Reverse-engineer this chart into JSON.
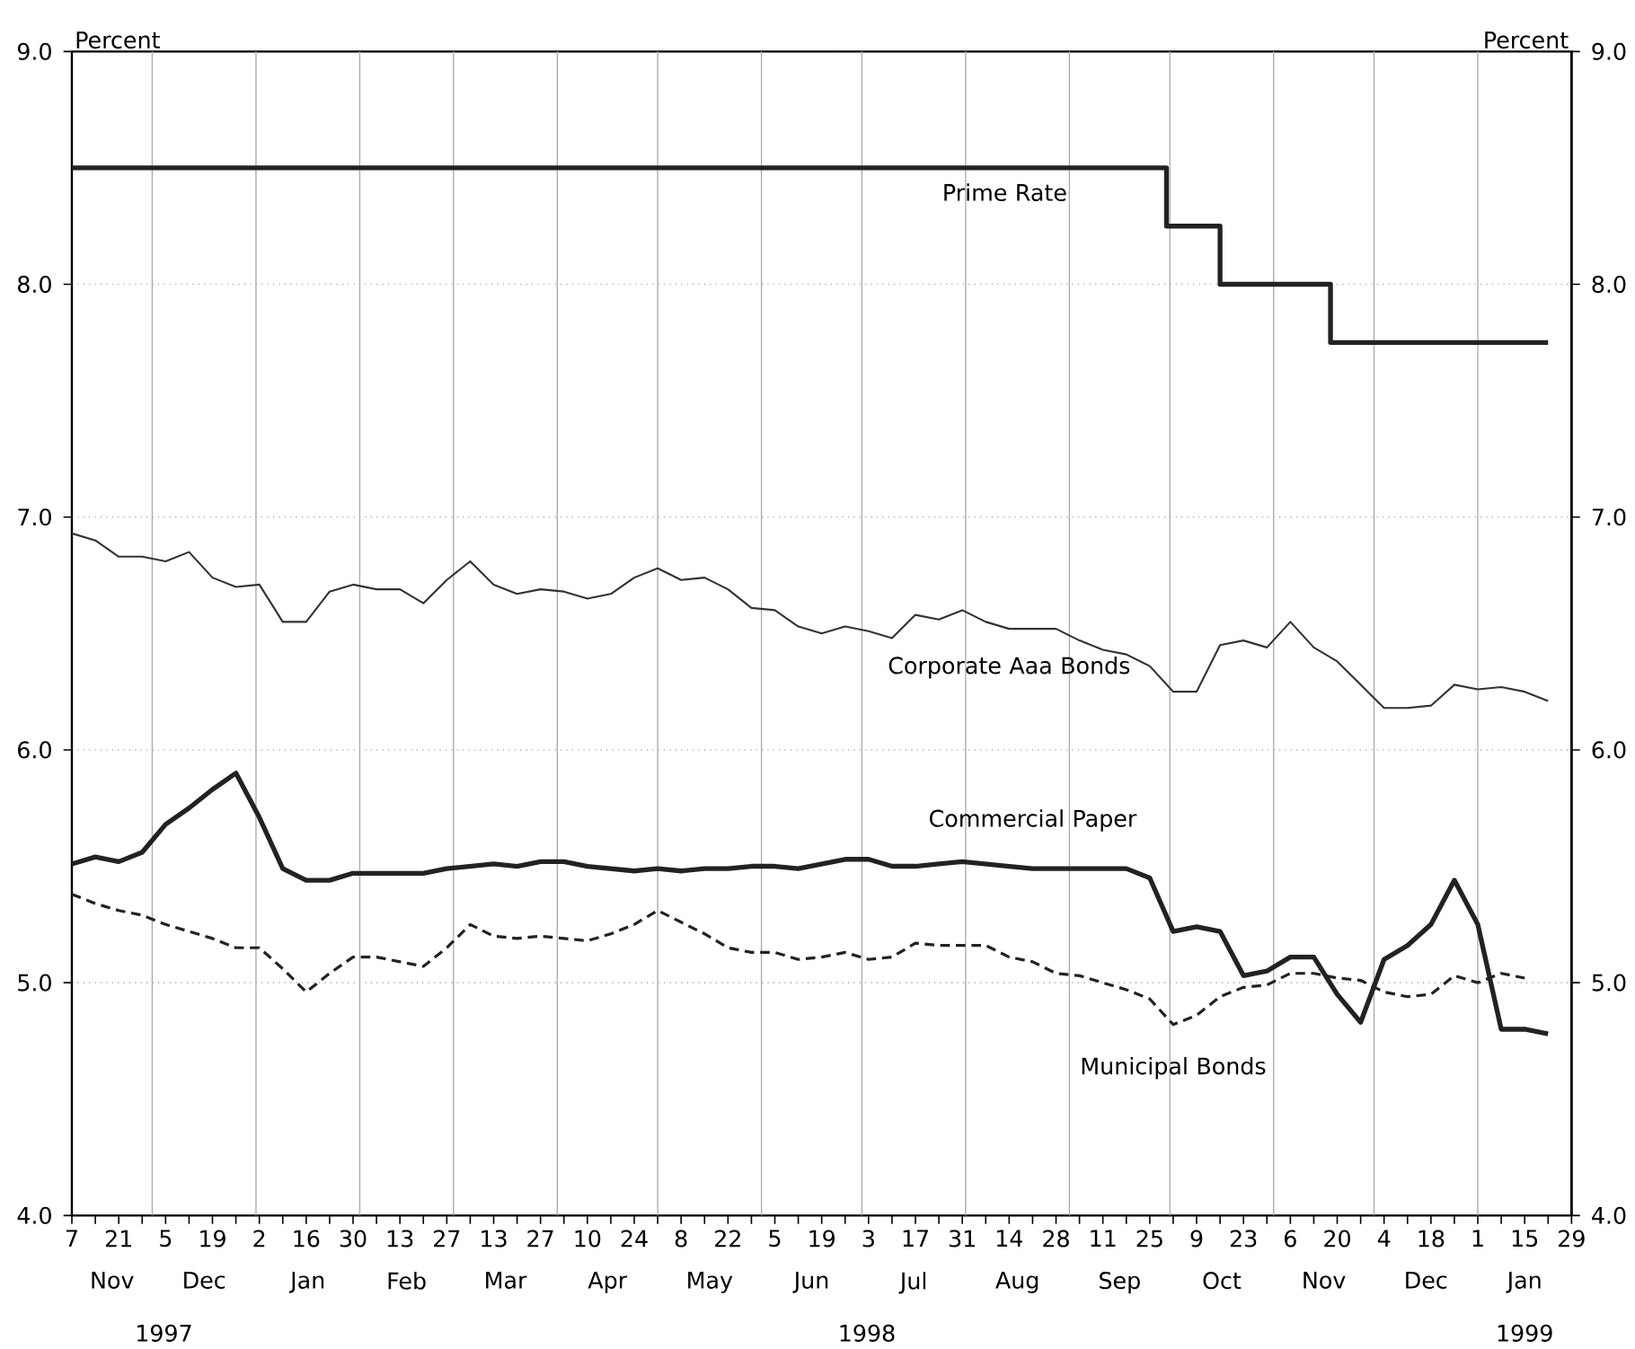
{
  "chart_data": {
    "type": "line",
    "ylabel": "Percent",
    "y2label": "Percent",
    "xlim": [
      "1997-11-07",
      "1999-01-29"
    ],
    "ylim": [
      4,
      9
    ],
    "y2lim": [
      4,
      9
    ],
    "yticks": [
      {
        "value": 4,
        "label": "4.0"
      },
      {
        "value": 5,
        "label": "5.0"
      },
      {
        "value": 6,
        "label": "6.0"
      },
      {
        "value": 7,
        "label": "7.0"
      },
      {
        "value": 8,
        "label": "8.0"
      },
      {
        "value": 9,
        "label": "9.0"
      }
    ],
    "y2ticks": [
      {
        "value": 4,
        "label": "4.0"
      },
      {
        "value": 5,
        "label": "5.0"
      },
      {
        "value": 6,
        "label": "6.0"
      },
      {
        "value": 7,
        "label": "7.0"
      },
      {
        "value": 8,
        "label": "8.0"
      },
      {
        "value": 9,
        "label": "9.0"
      }
    ],
    "xticks": [
      {
        "value": "1997-11-07",
        "label": "7"
      },
      {
        "value": "1997-11-14",
        "label": null
      },
      {
        "value": "1997-11-21",
        "label": "21"
      },
      {
        "value": "1997-11-28",
        "label": null
      },
      {
        "value": "1997-12-05",
        "label": "5"
      },
      {
        "value": "1997-12-12",
        "label": null
      },
      {
        "value": "1997-12-19",
        "label": "19"
      },
      {
        "value": "1997-12-26",
        "label": null
      },
      {
        "value": "1998-01-02",
        "label": "2"
      },
      {
        "value": "1998-01-09",
        "label": null
      },
      {
        "value": "1998-01-16",
        "label": "16"
      },
      {
        "value": "1998-01-23",
        "label": null
      },
      {
        "value": "1998-01-30",
        "label": "30"
      },
      {
        "value": "1998-02-06",
        "label": null
      },
      {
        "value": "1998-02-13",
        "label": "13"
      },
      {
        "value": "1998-02-20",
        "label": null
      },
      {
        "value": "1998-02-27",
        "label": "27"
      },
      {
        "value": "1998-03-06",
        "label": null
      },
      {
        "value": "1998-03-13",
        "label": "13"
      },
      {
        "value": "1998-03-20",
        "label": null
      },
      {
        "value": "1998-03-27",
        "label": "27"
      },
      {
        "value": "1998-04-03",
        "label": null
      },
      {
        "value": "1998-04-10",
        "label": "10"
      },
      {
        "value": "1998-04-17",
        "label": null
      },
      {
        "value": "1998-04-24",
        "label": "24"
      },
      {
        "value": "1998-05-01",
        "label": null
      },
      {
        "value": "1998-05-08",
        "label": "8"
      },
      {
        "value": "1998-05-15",
        "label": null
      },
      {
        "value": "1998-05-22",
        "label": "22"
      },
      {
        "value": "1998-05-29",
        "label": null
      },
      {
        "value": "1998-06-05",
        "label": "5"
      },
      {
        "value": "1998-06-12",
        "label": null
      },
      {
        "value": "1998-06-19",
        "label": "19"
      },
      {
        "value": "1998-06-26",
        "label": null
      },
      {
        "value": "1998-07-03",
        "label": "3"
      },
      {
        "value": "1998-07-10",
        "label": null
      },
      {
        "value": "1998-07-17",
        "label": "17"
      },
      {
        "value": "1998-07-24",
        "label": null
      },
      {
        "value": "1998-07-31",
        "label": "31"
      },
      {
        "value": "1998-08-07",
        "label": null
      },
      {
        "value": "1998-08-14",
        "label": "14"
      },
      {
        "value": "1998-08-21",
        "label": null
      },
      {
        "value": "1998-08-28",
        "label": "28"
      },
      {
        "value": "1998-09-04",
        "label": null
      },
      {
        "value": "1998-09-11",
        "label": "11"
      },
      {
        "value": "1998-09-18",
        "label": null
      },
      {
        "value": "1998-09-25",
        "label": "25"
      },
      {
        "value": "1998-10-02",
        "label": null
      },
      {
        "value": "1998-10-09",
        "label": "9"
      },
      {
        "value": "1998-10-16",
        "label": null
      },
      {
        "value": "1998-10-23",
        "label": "23"
      },
      {
        "value": "1998-10-30",
        "label": null
      },
      {
        "value": "1998-11-06",
        "label": "6"
      },
      {
        "value": "1998-11-13",
        "label": null
      },
      {
        "value": "1998-11-20",
        "label": "20"
      },
      {
        "value": "1998-11-27",
        "label": null
      },
      {
        "value": "1998-12-04",
        "label": "4"
      },
      {
        "value": "1998-12-11",
        "label": null
      },
      {
        "value": "1998-12-18",
        "label": "18"
      },
      {
        "value": "1998-12-25",
        "label": null
      },
      {
        "value": "1999-01-01",
        "label": "1"
      },
      {
        "value": "1999-01-08",
        "label": null
      },
      {
        "value": "1999-01-15",
        "label": "15"
      },
      {
        "value": "1999-01-22",
        "label": null
      },
      {
        "value": "1999-01-29",
        "label": "29"
      }
    ],
    "grid": "y",
    "x": [
      "1997-11-07",
      "1997-11-14",
      "1997-11-21",
      "1997-11-28",
      "1997-12-05",
      "1997-12-12",
      "1997-12-19",
      "1997-12-26",
      "1998-01-02",
      "1998-01-09",
      "1998-01-16",
      "1998-01-23",
      "1998-01-30",
      "1998-02-06",
      "1998-02-13",
      "1998-02-20",
      "1998-02-27",
      "1998-03-06",
      "1998-03-13",
      "1998-03-20",
      "1998-03-27",
      "1998-04-03",
      "1998-04-10",
      "1998-04-17",
      "1998-04-24",
      "1998-05-01",
      "1998-05-08",
      "1998-05-15",
      "1998-05-22",
      "1998-05-29",
      "1998-06-05",
      "1998-06-12",
      "1998-06-19",
      "1998-06-26",
      "1998-07-03",
      "1998-07-10",
      "1998-07-17",
      "1998-07-24",
      "1998-07-31",
      "1998-08-07",
      "1998-08-14",
      "1998-08-21",
      "1998-08-28",
      "1998-09-04",
      "1998-09-11",
      "1998-09-18",
      "1998-09-25",
      "1998-10-02",
      "1998-10-09",
      "1998-10-16",
      "1998-10-23",
      "1998-10-30",
      "1998-11-06",
      "1998-11-13",
      "1998-11-20",
      "1998-11-27",
      "1998-12-04",
      "1998-12-11",
      "1998-12-18",
      "1998-12-25",
      "1999-01-01",
      "1999-01-08",
      "1999-01-15",
      "1999-01-22"
    ],
    "series": [
      {
        "name": "Prime Rate",
        "type": "step",
        "color": "#222222",
        "x": [
          "1997-11-07",
          "1998-09-30",
          "1998-10-16",
          "1998-11-18",
          "1999-01-22"
        ],
        "values": [
          8.5,
          8.25,
          8.0,
          7.75,
          7.75
        ]
      },
      {
        "name": "Corporate Aaa Bonds",
        "color": "#333333",
        "values": [
          6.93,
          6.9,
          6.83,
          6.83,
          6.81,
          6.85,
          6.74,
          6.7,
          6.71,
          6.55,
          6.55,
          6.68,
          6.71,
          6.69,
          6.69,
          6.63,
          6.73,
          6.81,
          6.71,
          6.67,
          6.69,
          6.68,
          6.65,
          6.67,
          6.74,
          6.78,
          6.73,
          6.74,
          6.69,
          6.61,
          6.6,
          6.53,
          6.5,
          6.53,
          6.51,
          6.48,
          6.58,
          6.56,
          6.6,
          6.55,
          6.52,
          6.52,
          6.52,
          6.47,
          6.43,
          6.41,
          6.36,
          6.25,
          6.25,
          6.45,
          6.47,
          6.44,
          6.55,
          6.44,
          6.38,
          6.28,
          6.18,
          6.18,
          6.19,
          6.28,
          6.26,
          6.27,
          6.25,
          6.21
        ]
      },
      {
        "name": "Commercial Paper",
        "color": "#222222",
        "values": [
          5.51,
          5.54,
          5.52,
          5.56,
          5.68,
          5.75,
          5.83,
          5.9,
          5.71,
          5.49,
          5.44,
          5.44,
          5.47,
          5.47,
          5.47,
          5.47,
          5.49,
          5.5,
          5.51,
          5.5,
          5.52,
          5.52,
          5.5,
          5.49,
          5.48,
          5.49,
          5.48,
          5.49,
          5.49,
          5.5,
          5.5,
          5.49,
          5.51,
          5.53,
          5.53,
          5.5,
          5.5,
          5.51,
          5.52,
          5.51,
          5.5,
          5.49,
          5.49,
          5.49,
          5.49,
          5.49,
          5.45,
          5.22,
          5.24,
          5.22,
          5.03,
          5.05,
          5.11,
          5.11,
          4.95,
          4.83,
          5.1,
          5.16,
          5.25,
          5.44,
          5.25,
          4.8,
          4.8,
          4.78
        ]
      },
      {
        "name": "Municipal Bonds",
        "color": "#222222",
        "line_style": "dashed",
        "values": [
          5.38,
          5.34,
          5.31,
          5.29,
          5.25,
          5.22,
          5.19,
          5.15,
          5.15,
          5.06,
          4.96,
          5.04,
          5.11,
          5.11,
          5.09,
          5.07,
          5.15,
          5.25,
          5.2,
          5.19,
          5.2,
          5.19,
          5.18,
          5.21,
          5.25,
          5.31,
          5.26,
          5.21,
          5.15,
          5.13,
          5.13,
          5.1,
          5.11,
          5.13,
          5.1,
          5.11,
          5.17,
          5.16,
          5.16,
          5.16,
          5.11,
          5.09,
          5.04,
          5.03,
          5.0,
          4.97,
          4.93,
          4.82,
          4.86,
          4.94,
          4.98,
          4.99,
          5.04,
          5.04,
          5.02,
          5.01,
          4.96,
          4.94,
          4.95,
          5.03,
          5.0,
          5.04,
          5.02,
          null
        ]
      }
    ],
    "ref_lines": [
      {
        "axis": "x",
        "value": "1997-12-01",
        "color": "#aaaaaa"
      },
      {
        "axis": "x",
        "value": "1998-01-01",
        "color": "#aaaaaa"
      },
      {
        "axis": "x",
        "value": "1998-02-01",
        "color": "#aaaaaa"
      },
      {
        "axis": "x",
        "value": "1998-03-01",
        "color": "#aaaaaa"
      },
      {
        "axis": "x",
        "value": "1998-04-01",
        "color": "#aaaaaa"
      },
      {
        "axis": "x",
        "value": "1998-05-01",
        "color": "#aaaaaa"
      },
      {
        "axis": "x",
        "value": "1998-06-01",
        "color": "#aaaaaa"
      },
      {
        "axis": "x",
        "value": "1998-07-01",
        "color": "#aaaaaa"
      },
      {
        "axis": "x",
        "value": "1998-08-01",
        "color": "#aaaaaa"
      },
      {
        "axis": "x",
        "value": "1998-09-01",
        "color": "#aaaaaa"
      },
      {
        "axis": "x",
        "value": "1998-10-01",
        "color": "#aaaaaa"
      },
      {
        "axis": "x",
        "value": "1998-11-01",
        "color": "#aaaaaa"
      },
      {
        "axis": "x",
        "value": "1998-12-01",
        "color": "#aaaaaa"
      },
      {
        "axis": "x",
        "value": "1999-01-01",
        "color": "#aaaaaa"
      }
    ],
    "annotations": [
      "Nov",
      "Dec",
      "Jan",
      "Feb",
      "Mar",
      "Apr",
      "May",
      "Jun",
      "Jul",
      "Aug",
      "Sep",
      "Oct",
      "Nov",
      "Dec",
      "Jan",
      "1997",
      "1998",
      "1999"
    ]
  }
}
